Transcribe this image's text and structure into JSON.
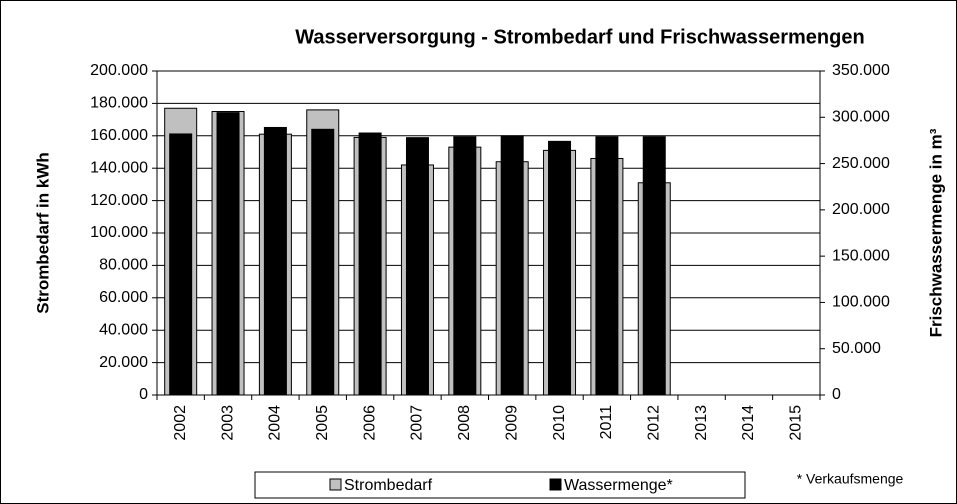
{
  "chart_data": {
    "type": "bar",
    "title": "Wasserversorgung - Strombedarf und Frischwassermengen",
    "ylabel": "Strombedarf in kWh",
    "y2label": "Frischwassermenge in m³",
    "note": "* Verkaufsmenge",
    "categories": [
      "2002",
      "2003",
      "2004",
      "2005",
      "2006",
      "2007",
      "2008",
      "2009",
      "2010",
      "2011",
      "2012",
      "2013",
      "2014",
      "2015"
    ],
    "series": [
      {
        "name": "Strombedarf",
        "color": "#c0c0c0",
        "values": [
          177000,
          175000,
          161000,
          176000,
          159000,
          142000,
          153000,
          144000,
          151000,
          146000,
          131000,
          null,
          null,
          null
        ]
      },
      {
        "name": "Wassermenge*",
        "color": "#000000",
        "axis": "y2",
        "values": [
          282000,
          305000,
          289000,
          287000,
          283000,
          278000,
          279000,
          280000,
          274000,
          279000,
          279000,
          null,
          null,
          null
        ]
      }
    ],
    "ylim": [
      0,
      200000
    ],
    "yticks": [
      0,
      {
        "value": 20000,
        "label": "20.000"
      },
      {
        "value": 40000,
        "label": "40.000"
      },
      {
        "value": 60000,
        "label": "60.000"
      },
      {
        "value": 80000,
        "label": "80.000"
      },
      {
        "value": 100000,
        "label": "100.000"
      },
      {
        "value": 120000,
        "label": "120.000"
      },
      {
        "value": 140000,
        "label": "140.000"
      },
      {
        "value": 160000,
        "label": "160.000"
      },
      {
        "value": 180000,
        "label": "180.000"
      },
      {
        "value": 200000,
        "label": "200.000"
      }
    ],
    "y2lim": [
      0,
      350000
    ],
    "y2ticks": [
      0,
      {
        "value": 50000,
        "label": "50.000"
      },
      {
        "value": 100000,
        "label": "100.000"
      },
      {
        "value": 150000,
        "label": "150.000"
      },
      {
        "value": 200000,
        "label": "200.000"
      },
      {
        "value": 250000,
        "label": "250.000"
      },
      {
        "value": 300000,
        "label": "300.000"
      },
      {
        "value": 350000,
        "label": "350.000"
      }
    ],
    "grid": true,
    "legend": "bottom"
  }
}
